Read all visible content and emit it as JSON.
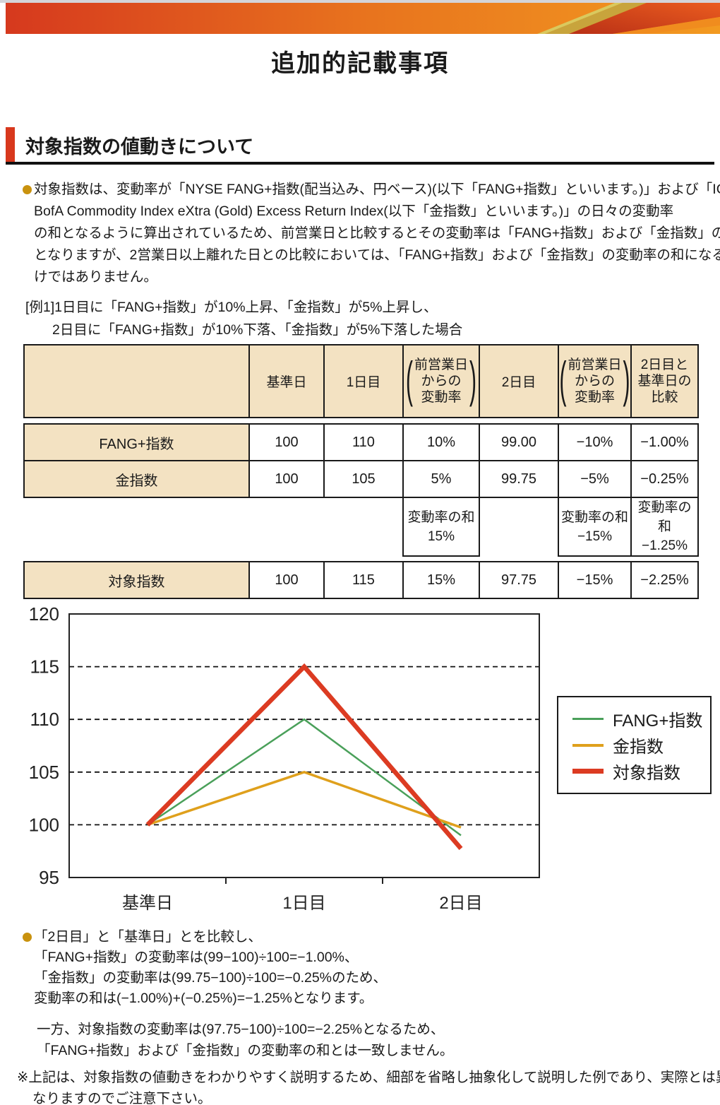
{
  "page": {
    "title": "追加的記載事項"
  },
  "section": {
    "heading": "対象指数の値動きについて"
  },
  "intro": {
    "lines": [
      "対象指数は、変動率が「NYSE FANG+指数(配当込み、円ベース)(以下「FANG+指数」といいます。)」および「ICE",
      "BofA Commodity Index eXtra (Gold) Excess Return Index(以下「金指数」といいます。)」の日々の変動率",
      "の和となるように算出されているため、前営業日と比較するとその変動率は「FANG+指数」および「金指数」の和",
      "となりますが、2営業日以上離れた日との比較においては、「FANG+指数」および「金指数」の変動率の和になるわ",
      "けではありません。"
    ]
  },
  "example": {
    "line1": "[例1]1日目に「FANG+指数」が10%上昇、「金指数」が5%上昇し、",
    "line2": "2日目に「FANG+指数」が10%下落、「金指数」が5%下落した場合"
  },
  "table": {
    "header": {
      "corner": "",
      "base_date": "基準日",
      "day1": "1日目",
      "chg_l1": "前営業日",
      "chg_l2": "からの",
      "chg_l3": "変動率",
      "day2": "2日目",
      "cmp_l1": "2日目と",
      "cmp_l2": "基準日の",
      "cmp_l3": "比較",
      "paren_open": "(",
      "paren_close": ")"
    },
    "rows": [
      {
        "label": "FANG+指数",
        "base": "100",
        "day1": "110",
        "chg1": "10%",
        "day2": "99.00",
        "chg2": "−10%",
        "cmp": "−1.00%"
      },
      {
        "label": "金指数",
        "base": "100",
        "day1": "105",
        "chg1": "5%",
        "day2": "99.75",
        "chg2": "−5%",
        "cmp": "−0.25%"
      }
    ],
    "sum_row": {
      "chg1_label": "変動率の和",
      "chg1": "15%",
      "chg2_label": "変動率の和",
      "chg2": "−15%",
      "cmp_label": "変動率の和",
      "cmp": "−1.25%"
    },
    "target_row": {
      "label": "対象指数",
      "base": "100",
      "day1": "115",
      "chg1": "15%",
      "day2": "97.75",
      "chg2": "−15%",
      "cmp": "−2.25%"
    }
  },
  "chart_data": {
    "type": "line",
    "categories": [
      "基準日",
      "1日目",
      "2日目"
    ],
    "series": [
      {
        "name": "FANG+指数",
        "values": [
          100,
          110,
          99
        ],
        "color": "#4aa05a",
        "stroke_width": 2.5
      },
      {
        "name": "金指数",
        "values": [
          100,
          105,
          99.75
        ],
        "color": "#dfa01c",
        "stroke_width": 3.5
      },
      {
        "name": "対象指数",
        "values": [
          100,
          115,
          97.75
        ],
        "color": "#dc3b22",
        "stroke_width": 6.5
      }
    ],
    "ylim": [
      95,
      120
    ],
    "ytick_step": 5,
    "grid": "horizontal-dashed",
    "legend_position": "right"
  },
  "notes": {
    "calc_lines": [
      "「2日目」と「基準日」とを比較し、",
      "「FANG+指数」の変動率は(99−100)÷100=−1.00%、",
      "「金指数」の変動率は(99.75−100)÷100=−0.25%のため、",
      "変動率の和は(−1.00%)+(−0.25%)=−1.25%となります。"
    ],
    "contrast_lines": [
      "一方、対象指数の変動率は(97.75−100)÷100=−2.25%となるため、",
      "「FANG+指数」および「金指数」の変動率の和とは一致しません。"
    ],
    "disclaimer_marker": "※",
    "disclaimer_lines": [
      "上記は、対象指数の値動きをわかりやすく説明するため、細部を省略し抽象化して説明した例であり、実際とは異",
      "なりますのでご注意下さい。"
    ]
  },
  "colors": {
    "accent_red": "#d8381d",
    "accent_orange": "#f29a20",
    "table_beige": "#f3e2c2",
    "bullet_gold": "#c9920e",
    "series_green": "#4aa05a",
    "series_gold": "#dfa01c",
    "series_red": "#dc3b22"
  }
}
